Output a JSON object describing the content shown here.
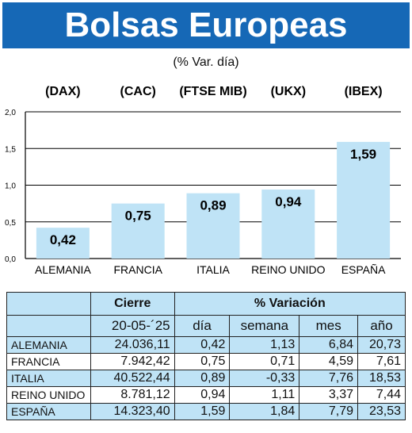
{
  "header": {
    "title": "Bolsas Europeas",
    "subtitle": "(% Var. día)"
  },
  "chart_data": {
    "type": "bar",
    "categories": [
      "ALEMANIA",
      "FRANCIA",
      "ITALIA",
      "REINO UNIDO",
      "ESPAÑA"
    ],
    "index_labels": [
      "(DAX)",
      "(CAC)",
      "(FTSE MIB)",
      "(UKX)",
      "(IBEX)"
    ],
    "values": [
      0.42,
      0.75,
      0.89,
      0.94,
      1.59
    ],
    "value_labels": [
      "0,42",
      "0,75",
      "0,89",
      "0,94",
      "1,59"
    ],
    "y_ticks": [
      "0,0",
      "0,5",
      "1,0",
      "1,5",
      "2,0"
    ],
    "ylim": [
      0,
      2
    ],
    "grid": true,
    "bar_color": "#bfe3f6"
  },
  "table": {
    "group_headers": [
      "Cierre",
      "% Variación"
    ],
    "columns": [
      "20-05-´25",
      "día",
      "semana",
      "mes",
      "año"
    ],
    "rows": [
      {
        "country": "ALEMANIA",
        "close": "24.036,11",
        "day": "0,42",
        "week": "1,13",
        "month": "6,84",
        "year": "20,73"
      },
      {
        "country": "FRANCIA",
        "close": "7.942,42",
        "day": "0,75",
        "week": "0,71",
        "month": "4,59",
        "year": "7,61"
      },
      {
        "country": "ITALIA",
        "close": "40.522,44",
        "day": "0,89",
        "week": "-0,33",
        "month": "7,76",
        "year": "18,53"
      },
      {
        "country": "REINO UNIDO",
        "close": "8.781,12",
        "day": "0,94",
        "week": "1,11",
        "month": "3,37",
        "year": "7,44"
      },
      {
        "country": "ESPAÑA",
        "close": "14.323,40",
        "day": "1,59",
        "week": "1,84",
        "month": "7,79",
        "year": "23,53"
      }
    ]
  },
  "colors": {
    "banner": "#1668b6",
    "accent_light": "#bfe3f6"
  }
}
